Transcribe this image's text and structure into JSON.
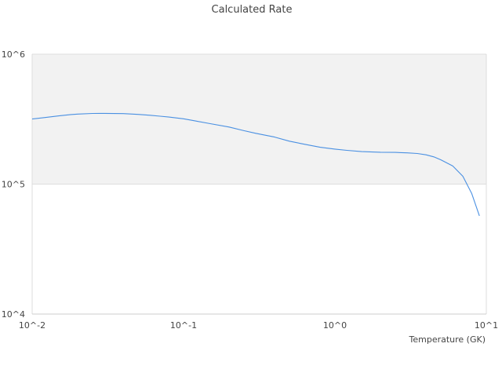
{
  "chart_data": {
    "type": "line",
    "title": "Calculated Rate",
    "xlabel": "Temperature (GK)",
    "ylabel": "",
    "x_scale": "log",
    "y_scale": "log",
    "xlim": [
      0.01,
      10
    ],
    "ylim": [
      10000,
      1000000
    ],
    "x_ticks": [
      {
        "value": 0.01,
        "label": "10^-2"
      },
      {
        "value": 0.1,
        "label": "10^-1"
      },
      {
        "value": 1,
        "label": "10^0"
      },
      {
        "value": 10,
        "label": "10^1"
      }
    ],
    "y_ticks": [
      {
        "value": 10000,
        "label": "10^4"
      },
      {
        "value": 100000,
        "label": "10^5"
      },
      {
        "value": 1000000,
        "label": "10^6"
      }
    ],
    "shaded_band": [
      100000,
      1000000
    ],
    "legend": "none",
    "series": [
      {
        "color": "#4a90e2",
        "x": [
          0.01,
          0.012,
          0.015,
          0.018,
          0.02,
          0.025,
          0.03,
          0.04,
          0.05,
          0.06,
          0.07,
          0.08,
          0.1,
          0.12,
          0.15,
          0.2,
          0.25,
          0.3,
          0.4,
          0.5,
          0.6,
          0.7,
          0.8,
          1.0,
          1.2,
          1.5,
          2.0,
          2.5,
          3.0,
          3.5,
          4.0,
          4.5,
          5.0,
          6.0,
          7.0,
          8.0,
          9.0
        ],
        "y": [
          317000,
          325000,
          335000,
          343000,
          346000,
          350000,
          350500,
          349000,
          344000,
          339000,
          333000,
          328000,
          318000,
          306000,
          292000,
          275000,
          258000,
          246000,
          230000,
          214000,
          205000,
          198000,
          192000,
          186000,
          182000,
          178000,
          176000,
          175500,
          174000,
          172000,
          168000,
          162000,
          154000,
          138000,
          115000,
          85000,
          57000
        ]
      }
    ]
  }
}
